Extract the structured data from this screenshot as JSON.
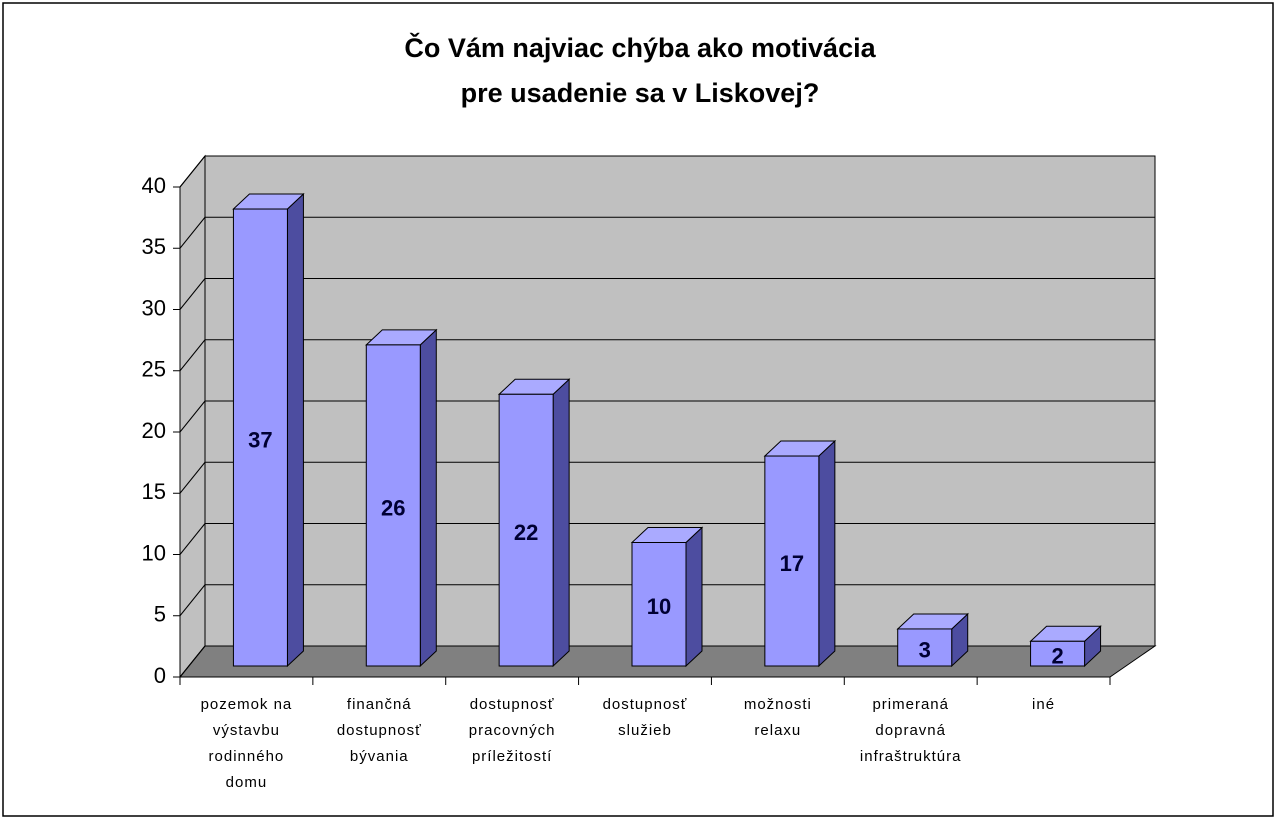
{
  "chart_data": {
    "type": "bar3d",
    "title": [
      "Čo Vám najviac chýba ako motivácia",
      "pre usadenie sa v Liskovej?"
    ],
    "categories": [
      "pozemok na výstavbu rodinného domu",
      "finančná dostupnosť bývania",
      "dostupnosť pracovných príležitostí",
      "dostupnosť služieb",
      "možnosti relaxu",
      "primeraná dopravná infraštruktúra",
      "iné"
    ],
    "values": [
      37,
      26,
      22,
      10,
      17,
      3,
      2
    ],
    "color": "#9999ff",
    "ylim": [
      0,
      40
    ],
    "yticks": [
      0,
      5,
      10,
      15,
      20,
      25,
      30,
      35,
      40
    ],
    "grid": true
  }
}
